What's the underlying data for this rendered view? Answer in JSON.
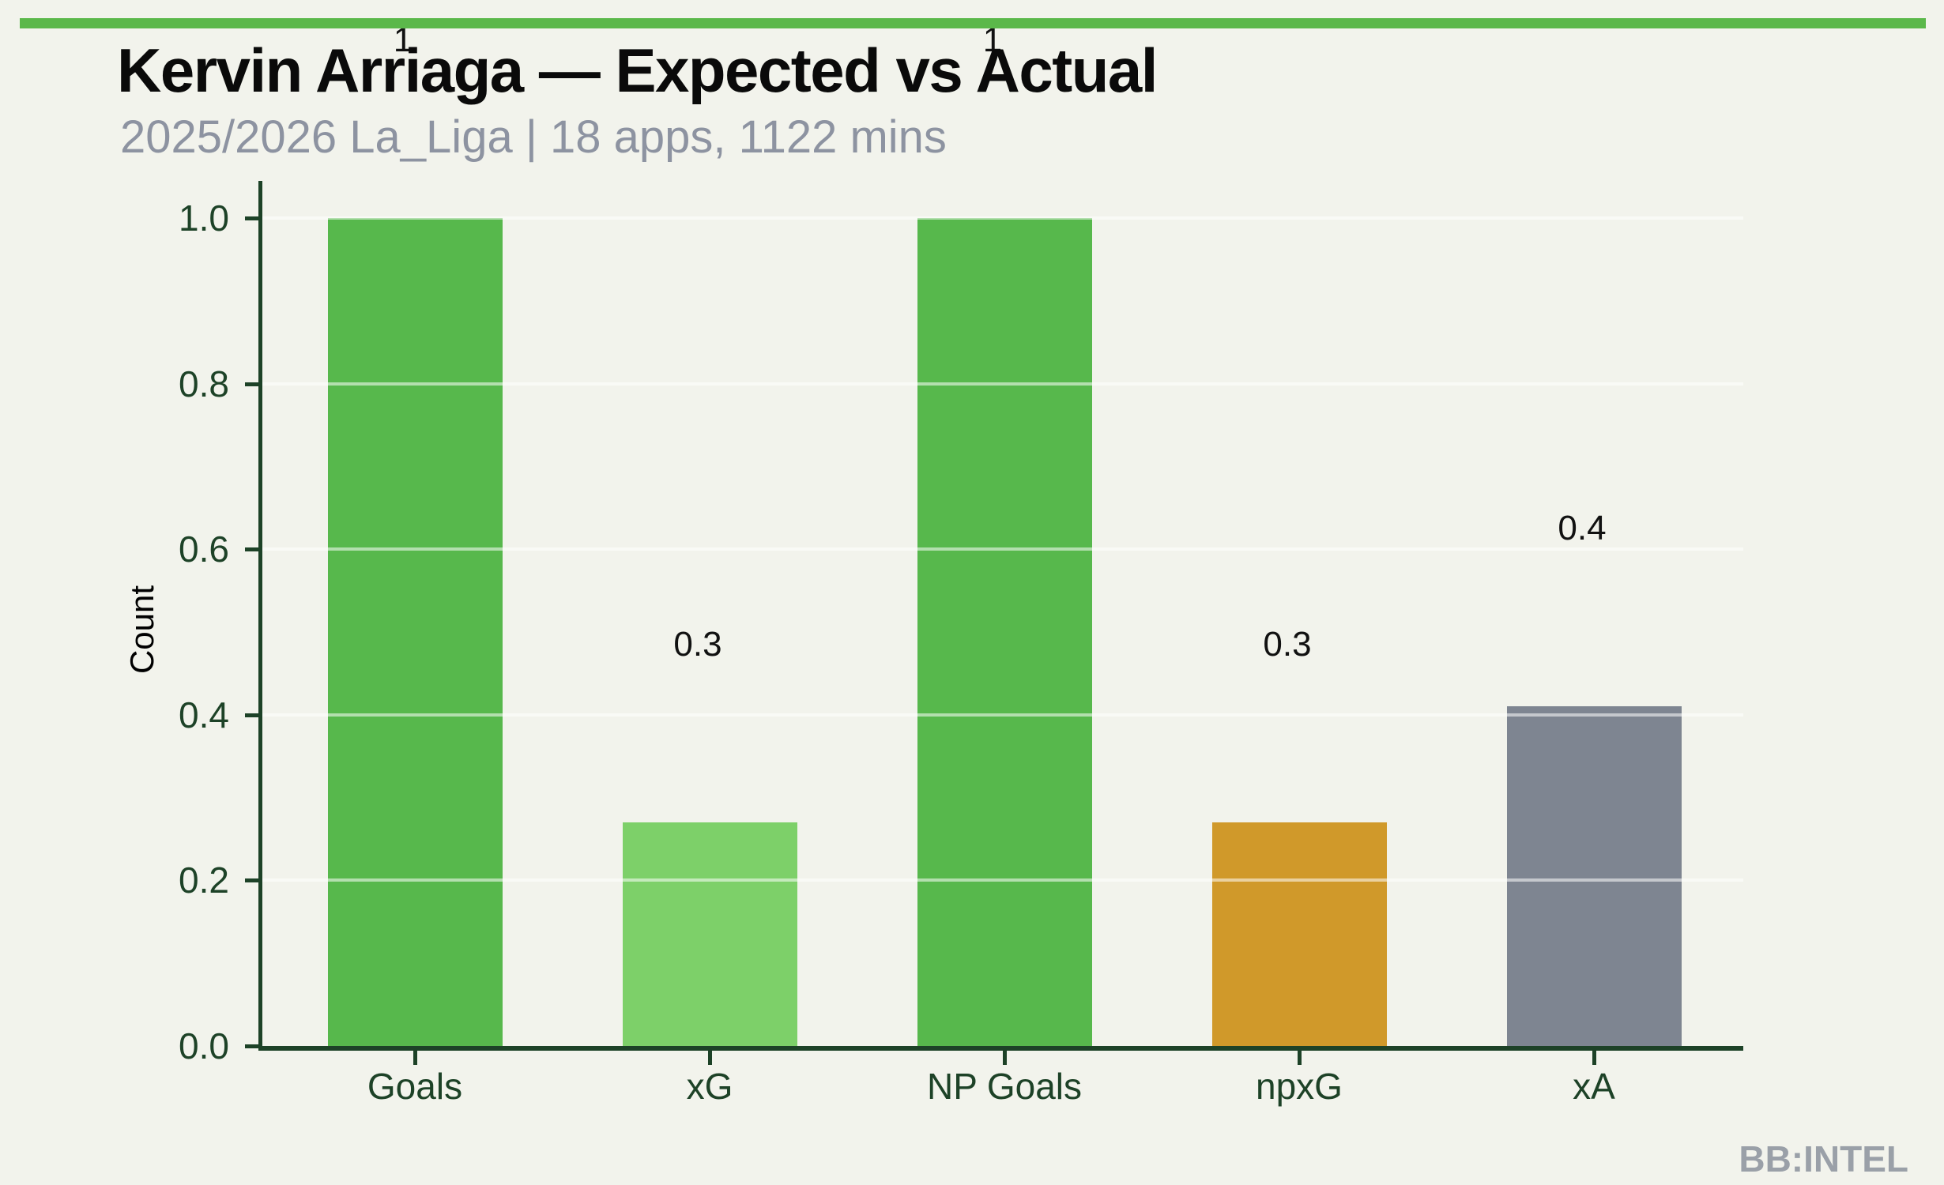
{
  "page": {
    "background_color": "#f2f3ec",
    "accent_bar_color": "#5bb84a"
  },
  "header": {
    "title": "Kervin Arriaga — Expected vs Actual",
    "subtitle": "2025/2026 La_Liga | 18 apps, 1122 mins"
  },
  "watermark": "BB:INTEL",
  "chart_data": {
    "type": "bar",
    "title": "Kervin Arriaga — Expected vs Actual",
    "subtitle": "2025/2026 La_Liga | 18 apps, 1122 mins",
    "xlabel": "",
    "ylabel": "Count",
    "categories": [
      "Goals",
      "xG",
      "NP Goals",
      "npxG",
      "xA"
    ],
    "values": [
      1.0,
      0.27,
      1.0,
      0.27,
      0.41
    ],
    "value_labels": [
      "1",
      "0.3",
      "1",
      "0.3",
      "0.4"
    ],
    "bar_colors": [
      "#57b84c",
      "#7dd069",
      "#57b84c",
      "#d0992a",
      "#7e8591"
    ],
    "ylim": [
      0.0,
      1.0
    ],
    "yticks": [
      "0.0",
      "0.2",
      "0.4",
      "0.6",
      "0.8",
      "1.0"
    ],
    "grid": true,
    "gridline_color": "rgba(255,255,255,0.55)",
    "axis_color": "#1d4227",
    "tick_label_color": "#1d4227",
    "value_label_color": "#111111",
    "legend": "none"
  }
}
